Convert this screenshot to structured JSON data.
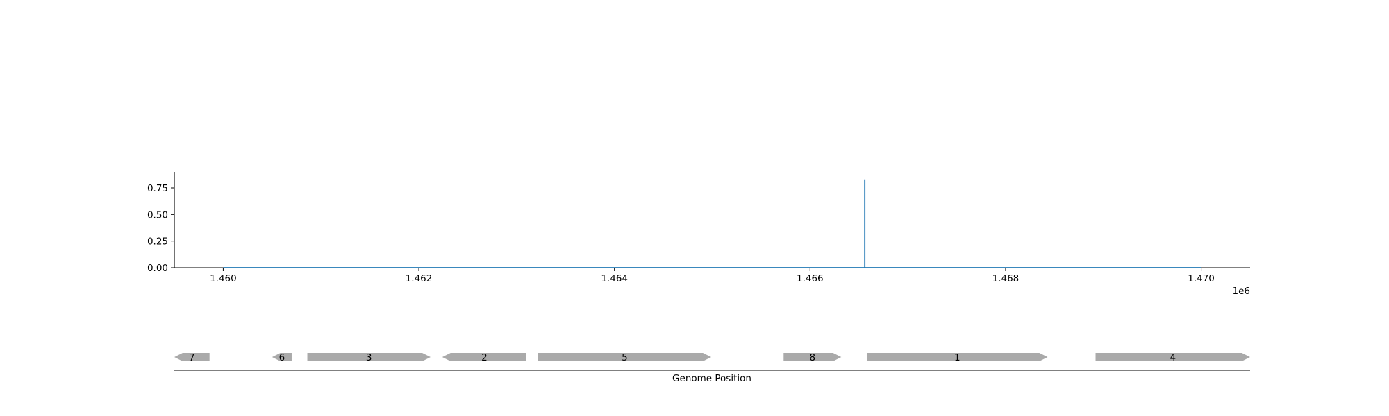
{
  "chart_data": {
    "type": "line",
    "coverage": {
      "x": [
        1460000,
        1466560,
        1466560,
        1466560,
        1470000
      ],
      "y": [
        0,
        0,
        0.83,
        0,
        0
      ],
      "xlim": [
        1459500,
        1470500
      ],
      "ylim": [
        0,
        0.9
      ],
      "xticks": [
        1460000,
        1462000,
        1464000,
        1466000,
        1468000,
        1470000
      ],
      "xtick_labels": [
        "1.460",
        "1.462",
        "1.464",
        "1.466",
        "1.468",
        "1.470"
      ],
      "yticks": [
        0,
        0.25,
        0.5,
        0.75
      ],
      "ytick_labels": [
        "0.00",
        "0.25",
        "0.50",
        "0.75"
      ],
      "offset_label": "1e6",
      "line_color": "#1f77b4",
      "grid": false
    },
    "genes": {
      "xlabel": "Genome Position",
      "color": "#aaaaaa",
      "items": [
        {
          "label": "7",
          "start": 1459500,
          "end": 1459860,
          "strand": "-"
        },
        {
          "label": "6",
          "start": 1460500,
          "end": 1460700,
          "strand": "-"
        },
        {
          "label": "3",
          "start": 1460860,
          "end": 1462120,
          "strand": "+"
        },
        {
          "label": "2",
          "start": 1462240,
          "end": 1463100,
          "strand": "-"
        },
        {
          "label": "5",
          "start": 1463220,
          "end": 1464990,
          "strand": "+"
        },
        {
          "label": "8",
          "start": 1465730,
          "end": 1466320,
          "strand": "+"
        },
        {
          "label": "1",
          "start": 1466580,
          "end": 1468430,
          "strand": "+"
        },
        {
          "label": "4",
          "start": 1468920,
          "end": 1470500,
          "strand": "+"
        }
      ]
    }
  }
}
